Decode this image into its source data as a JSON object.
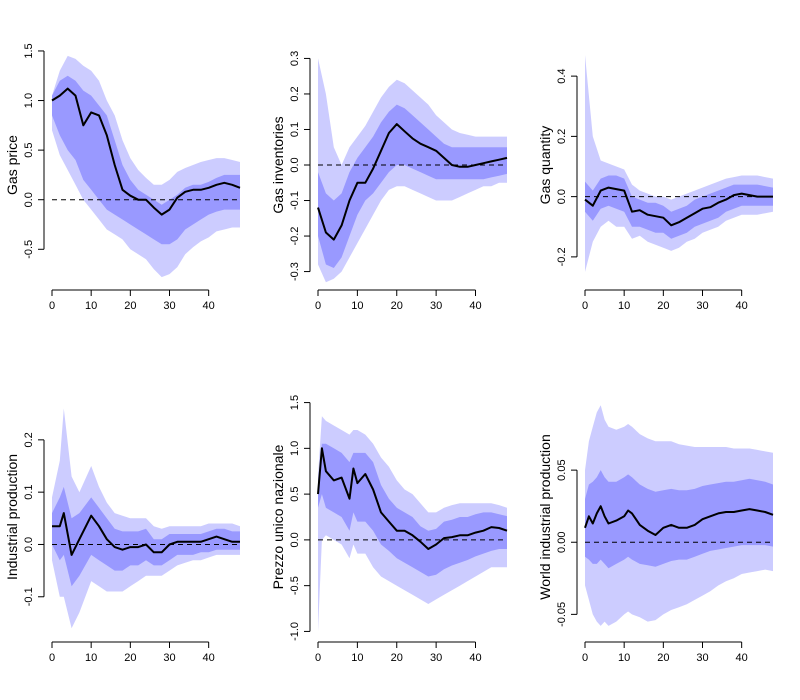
{
  "figure": {
    "description_key": "impulse-response-grid"
  },
  "chart_data": [
    {
      "type": "line",
      "ylabel": "Gas price",
      "xlim": [
        0,
        48
      ],
      "ylim": [
        -0.85,
        1.55
      ],
      "xticks": [
        0,
        10,
        20,
        30,
        40
      ],
      "yticks": [
        -0.5,
        0.0,
        0.5,
        1.0,
        1.5
      ],
      "ytick_labels": [
        "-0.5",
        "0.0",
        "0.5",
        "1.0",
        "1.5"
      ],
      "zero_line": true,
      "colors": {
        "outer_band": "#ccccff",
        "inner_band": "#9999ff",
        "median": "#000000"
      },
      "series": {
        "x": [
          0,
          2,
          4,
          6,
          8,
          10,
          12,
          14,
          16,
          18,
          20,
          22,
          24,
          26,
          28,
          30,
          32,
          34,
          36,
          38,
          40,
          42,
          44,
          46,
          48
        ],
        "median": [
          1.0,
          1.05,
          1.12,
          1.05,
          0.75,
          0.88,
          0.85,
          0.65,
          0.35,
          0.1,
          0.04,
          0.0,
          0.0,
          -0.08,
          -0.15,
          -0.1,
          0.02,
          0.08,
          0.1,
          0.1,
          0.12,
          0.15,
          0.17,
          0.15,
          0.12
        ],
        "lower68": [
          0.85,
          0.65,
          0.5,
          0.4,
          0.2,
          0.1,
          0.0,
          -0.1,
          -0.15,
          -0.2,
          -0.25,
          -0.3,
          -0.35,
          -0.4,
          -0.45,
          -0.45,
          -0.4,
          -0.3,
          -0.25,
          -0.2,
          -0.15,
          -0.12,
          -0.1,
          -0.1,
          -0.1
        ],
        "upper68": [
          1.05,
          1.2,
          1.25,
          1.2,
          1.1,
          1.05,
          0.95,
          0.85,
          0.6,
          0.35,
          0.2,
          0.1,
          0.05,
          0.0,
          -0.05,
          0.0,
          0.05,
          0.12,
          0.15,
          0.15,
          0.18,
          0.22,
          0.25,
          0.25,
          0.25
        ],
        "lower90": [
          0.7,
          0.45,
          0.3,
          0.15,
          0.0,
          -0.1,
          -0.2,
          -0.3,
          -0.35,
          -0.4,
          -0.5,
          -0.55,
          -0.6,
          -0.7,
          -0.78,
          -0.75,
          -0.68,
          -0.55,
          -0.48,
          -0.42,
          -0.38,
          -0.32,
          -0.3,
          -0.28,
          -0.28
        ],
        "upper90": [
          1.05,
          1.3,
          1.45,
          1.42,
          1.35,
          1.3,
          1.2,
          1.0,
          0.85,
          0.6,
          0.42,
          0.3,
          0.22,
          0.15,
          0.15,
          0.2,
          0.28,
          0.32,
          0.35,
          0.38,
          0.4,
          0.42,
          0.42,
          0.4,
          0.38
        ]
      }
    },
    {
      "type": "line",
      "ylabel": "Gas inventories",
      "xlim": [
        0,
        48
      ],
      "ylim": [
        -0.335,
        0.335
      ],
      "xticks": [
        0,
        10,
        20,
        30,
        40
      ],
      "yticks": [
        -0.3,
        -0.2,
        -0.1,
        0.0,
        0.1,
        0.2,
        0.3
      ],
      "ytick_labels": [
        "-0.3",
        "-0.2",
        "-0.1",
        "0.0",
        "0.1",
        "0.2",
        "0.3"
      ],
      "zero_line": true,
      "colors": {
        "outer_band": "#ccccff",
        "inner_band": "#9999ff",
        "median": "#000000"
      },
      "series": {
        "x": [
          0,
          2,
          4,
          6,
          8,
          10,
          12,
          14,
          16,
          18,
          20,
          22,
          24,
          26,
          28,
          30,
          32,
          34,
          36,
          38,
          40,
          42,
          44,
          46,
          48
        ],
        "median": [
          -0.12,
          -0.19,
          -0.21,
          -0.17,
          -0.1,
          -0.05,
          -0.05,
          -0.01,
          0.04,
          0.09,
          0.115,
          0.095,
          0.075,
          0.06,
          0.05,
          0.04,
          0.02,
          0.0,
          -0.005,
          -0.005,
          0.0,
          0.005,
          0.01,
          0.015,
          0.02
        ],
        "lower68": [
          -0.2,
          -0.28,
          -0.29,
          -0.26,
          -0.2,
          -0.14,
          -0.1,
          -0.08,
          -0.05,
          -0.02,
          0.0,
          0.0,
          -0.01,
          -0.02,
          -0.03,
          -0.04,
          -0.04,
          -0.04,
          -0.04,
          -0.04,
          -0.04,
          -0.04,
          -0.035,
          -0.03,
          -0.025
        ],
        "upper68": [
          -0.02,
          -0.08,
          -0.1,
          -0.08,
          -0.02,
          0.02,
          0.05,
          0.08,
          0.12,
          0.15,
          0.17,
          0.16,
          0.14,
          0.12,
          0.1,
          0.08,
          0.06,
          0.05,
          0.05,
          0.05,
          0.05,
          0.05,
          0.05,
          0.05,
          0.05
        ],
        "lower90": [
          -0.28,
          -0.33,
          -0.32,
          -0.3,
          -0.26,
          -0.22,
          -0.18,
          -0.14,
          -0.1,
          -0.07,
          -0.06,
          -0.06,
          -0.07,
          -0.08,
          -0.09,
          -0.1,
          -0.1,
          -0.1,
          -0.09,
          -0.08,
          -0.07,
          -0.06,
          -0.06,
          -0.05,
          -0.05
        ],
        "upper90": [
          0.3,
          0.2,
          0.05,
          0.0,
          0.05,
          0.08,
          0.11,
          0.15,
          0.19,
          0.22,
          0.24,
          0.23,
          0.21,
          0.19,
          0.17,
          0.14,
          0.12,
          0.1,
          0.09,
          0.085,
          0.08,
          0.08,
          0.08,
          0.08,
          0.08
        ]
      }
    },
    {
      "type": "line",
      "ylabel": "Gas quantity",
      "xlim": [
        0,
        48
      ],
      "ylim": [
        -0.29,
        0.5
      ],
      "xticks": [
        0,
        10,
        20,
        30,
        40
      ],
      "yticks": [
        -0.2,
        0.0,
        0.2,
        0.4
      ],
      "ytick_labels": [
        "-0.2",
        "0.0",
        "0.2",
        "0.4"
      ],
      "zero_line": true,
      "colors": {
        "outer_band": "#ccccff",
        "inner_band": "#9999ff",
        "median": "#000000"
      },
      "series": {
        "x": [
          0,
          2,
          4,
          6,
          8,
          10,
          12,
          14,
          16,
          18,
          20,
          22,
          24,
          26,
          28,
          30,
          32,
          34,
          36,
          38,
          40,
          42,
          44,
          46,
          48
        ],
        "median": [
          -0.01,
          -0.03,
          0.02,
          0.03,
          0.025,
          0.02,
          -0.05,
          -0.045,
          -0.06,
          -0.065,
          -0.07,
          -0.095,
          -0.085,
          -0.07,
          -0.055,
          -0.04,
          -0.035,
          -0.02,
          -0.01,
          0.005,
          0.01,
          0.005,
          0.0,
          0.0,
          0.0
        ],
        "lower68": [
          -0.05,
          -0.08,
          -0.04,
          -0.03,
          -0.04,
          -0.05,
          -0.1,
          -0.1,
          -0.11,
          -0.12,
          -0.12,
          -0.14,
          -0.13,
          -0.12,
          -0.1,
          -0.09,
          -0.08,
          -0.07,
          -0.05,
          -0.04,
          -0.03,
          -0.03,
          -0.03,
          -0.03,
          -0.03
        ],
        "upper68": [
          0.05,
          0.02,
          0.06,
          0.07,
          0.07,
          0.06,
          0.0,
          -0.01,
          -0.02,
          -0.02,
          -0.03,
          -0.05,
          -0.04,
          -0.03,
          -0.01,
          0.0,
          0.01,
          0.02,
          0.03,
          0.04,
          0.04,
          0.04,
          0.04,
          0.035,
          0.03
        ],
        "lower90": [
          -0.25,
          -0.15,
          -0.1,
          -0.08,
          -0.1,
          -0.1,
          -0.14,
          -0.13,
          -0.15,
          -0.16,
          -0.17,
          -0.18,
          -0.17,
          -0.15,
          -0.14,
          -0.12,
          -0.11,
          -0.1,
          -0.08,
          -0.07,
          -0.06,
          -0.06,
          -0.06,
          -0.055,
          -0.05
        ],
        "upper90": [
          0.47,
          0.2,
          0.12,
          0.11,
          0.1,
          0.09,
          0.04,
          0.02,
          0.01,
          0.0,
          0.0,
          -0.01,
          0.0,
          0.01,
          0.02,
          0.03,
          0.04,
          0.05,
          0.06,
          0.065,
          0.07,
          0.07,
          0.07,
          0.065,
          0.06
        ]
      }
    },
    {
      "type": "line",
      "ylabel": "Industrial production",
      "xlim": [
        0,
        48
      ],
      "ylim": [
        -0.175,
        0.28
      ],
      "xticks": [
        0,
        10,
        20,
        30,
        40
      ],
      "yticks": [
        -0.1,
        0.0,
        0.1,
        0.2
      ],
      "ytick_labels": [
        "-0.1",
        "0.0",
        "0.1",
        "0.2"
      ],
      "zero_line": true,
      "colors": {
        "outer_band": "#ccccff",
        "inner_band": "#9999ff",
        "median": "#000000"
      },
      "series": {
        "x": [
          0,
          2,
          3,
          5,
          7,
          10,
          12,
          14,
          16,
          18,
          20,
          22,
          24,
          26,
          28,
          30,
          32,
          34,
          36,
          38,
          40,
          42,
          44,
          46,
          48
        ],
        "median": [
          0.035,
          0.035,
          0.06,
          -0.02,
          0.01,
          0.055,
          0.035,
          0.01,
          -0.005,
          -0.01,
          -0.005,
          -0.005,
          0.0,
          -0.015,
          -0.015,
          0.0,
          0.005,
          0.005,
          0.005,
          0.005,
          0.01,
          0.015,
          0.01,
          0.005,
          0.005
        ],
        "lower68": [
          0.0,
          -0.03,
          -0.02,
          -0.08,
          -0.06,
          -0.02,
          -0.03,
          -0.04,
          -0.05,
          -0.05,
          -0.04,
          -0.04,
          -0.03,
          -0.04,
          -0.04,
          -0.03,
          -0.02,
          -0.02,
          -0.02,
          -0.015,
          -0.015,
          -0.01,
          -0.01,
          -0.01,
          -0.01
        ],
        "upper68": [
          0.06,
          0.09,
          0.11,
          0.05,
          0.06,
          0.09,
          0.07,
          0.05,
          0.03,
          0.025,
          0.025,
          0.025,
          0.03,
          0.01,
          0.01,
          0.02,
          0.02,
          0.02,
          0.02,
          0.02,
          0.025,
          0.03,
          0.03,
          0.025,
          0.025
        ],
        "lower90": [
          -0.03,
          -0.1,
          -0.1,
          -0.16,
          -0.13,
          -0.07,
          -0.08,
          -0.09,
          -0.09,
          -0.09,
          -0.08,
          -0.07,
          -0.06,
          -0.06,
          -0.06,
          -0.05,
          -0.04,
          -0.035,
          -0.03,
          -0.03,
          -0.025,
          -0.02,
          -0.02,
          -0.02,
          -0.02
        ],
        "upper90": [
          0.09,
          0.16,
          0.26,
          0.13,
          0.1,
          0.15,
          0.11,
          0.08,
          0.06,
          0.055,
          0.05,
          0.05,
          0.05,
          0.035,
          0.03,
          0.035,
          0.035,
          0.035,
          0.035,
          0.035,
          0.04,
          0.04,
          0.04,
          0.04,
          0.035
        ]
      }
    },
    {
      "type": "line",
      "ylabel": "Prezzo unico nazionale",
      "xlim": [
        0,
        48
      ],
      "ylim": [
        -1.05,
        1.55
      ],
      "xticks": [
        0,
        10,
        20,
        30,
        40
      ],
      "yticks": [
        -1.0,
        -0.5,
        0.0,
        0.5,
        1.0,
        1.5
      ],
      "ytick_labels": [
        "-1.0",
        "-0.5",
        "0.0",
        "0.5",
        "1.0",
        "1.5"
      ],
      "zero_line": true,
      "colors": {
        "outer_band": "#ccccff",
        "inner_band": "#9999ff",
        "median": "#000000"
      },
      "series": {
        "x": [
          0,
          1,
          2,
          4,
          6,
          8,
          9,
          10,
          12,
          14,
          16,
          18,
          20,
          22,
          24,
          26,
          28,
          30,
          32,
          34,
          36,
          38,
          40,
          42,
          44,
          46,
          48
        ],
        "median": [
          0.5,
          1.0,
          0.75,
          0.65,
          0.68,
          0.45,
          0.78,
          0.62,
          0.72,
          0.55,
          0.3,
          0.2,
          0.1,
          0.1,
          0.05,
          -0.02,
          -0.1,
          -0.05,
          0.02,
          0.03,
          0.05,
          0.05,
          0.08,
          0.1,
          0.14,
          0.13,
          0.1
        ],
        "lower68": [
          0.35,
          0.5,
          0.35,
          0.3,
          0.25,
          0.1,
          0.3,
          0.2,
          0.2,
          0.1,
          -0.05,
          -0.12,
          -0.2,
          -0.25,
          -0.3,
          -0.35,
          -0.4,
          -0.38,
          -0.32,
          -0.28,
          -0.25,
          -0.22,
          -0.18,
          -0.15,
          -0.12,
          -0.1,
          -0.1
        ],
        "upper68": [
          0.65,
          1.05,
          1.05,
          1.0,
          0.95,
          0.85,
          0.95,
          0.95,
          0.95,
          0.85,
          0.6,
          0.45,
          0.35,
          0.3,
          0.25,
          0.15,
          0.1,
          0.12,
          0.2,
          0.22,
          0.25,
          0.25,
          0.28,
          0.3,
          0.3,
          0.28,
          0.26
        ],
        "lower90": [
          -1.0,
          0.0,
          0.05,
          0.0,
          -0.05,
          -0.2,
          -0.05,
          -0.15,
          -0.15,
          -0.3,
          -0.4,
          -0.45,
          -0.5,
          -0.55,
          -0.6,
          -0.65,
          -0.7,
          -0.65,
          -0.6,
          -0.55,
          -0.5,
          -0.45,
          -0.4,
          -0.35,
          -0.3,
          -0.3,
          -0.3
        ],
        "upper90": [
          0.7,
          1.35,
          1.3,
          1.25,
          1.2,
          1.15,
          1.2,
          1.2,
          1.15,
          1.05,
          0.9,
          0.8,
          0.65,
          0.55,
          0.5,
          0.4,
          0.3,
          0.3,
          0.35,
          0.38,
          0.4,
          0.4,
          0.4,
          0.4,
          0.4,
          0.38,
          0.35
        ]
      }
    },
    {
      "type": "line",
      "ylabel": "World industrial production",
      "xlim": [
        0,
        48
      ],
      "ylim": [
        -0.065,
        0.1
      ],
      "xticks": [
        0,
        10,
        20,
        30,
        40
      ],
      "yticks": [
        -0.05,
        0.0,
        0.05
      ],
      "ytick_labels": [
        "-0.05",
        "0.00",
        "0.05"
      ],
      "zero_line": true,
      "colors": {
        "outer_band": "#ccccff",
        "inner_band": "#9999ff",
        "median": "#000000"
      },
      "series": {
        "x": [
          0,
          1,
          2,
          3,
          4,
          5,
          6,
          8,
          10,
          11,
          12,
          14,
          16,
          18,
          20,
          22,
          24,
          26,
          28,
          30,
          32,
          34,
          36,
          38,
          40,
          42,
          44,
          46,
          48
        ],
        "median": [
          0.01,
          0.018,
          0.013,
          0.02,
          0.025,
          0.018,
          0.013,
          0.015,
          0.018,
          0.022,
          0.02,
          0.012,
          0.008,
          0.005,
          0.01,
          0.012,
          0.01,
          0.01,
          0.012,
          0.016,
          0.018,
          0.02,
          0.021,
          0.021,
          0.022,
          0.023,
          0.022,
          0.021,
          0.019
        ],
        "lower68": [
          -0.01,
          -0.012,
          -0.015,
          -0.015,
          -0.012,
          -0.015,
          -0.018,
          -0.015,
          -0.012,
          -0.01,
          -0.012,
          -0.015,
          -0.016,
          -0.017,
          -0.015,
          -0.013,
          -0.012,
          -0.012,
          -0.01,
          -0.008,
          -0.006,
          -0.005,
          -0.004,
          -0.003,
          -0.002,
          -0.002,
          -0.002,
          -0.002,
          -0.003
        ],
        "upper68": [
          0.03,
          0.04,
          0.042,
          0.045,
          0.05,
          0.045,
          0.042,
          0.042,
          0.045,
          0.047,
          0.045,
          0.04,
          0.037,
          0.035,
          0.036,
          0.037,
          0.036,
          0.036,
          0.037,
          0.039,
          0.04,
          0.041,
          0.042,
          0.042,
          0.043,
          0.044,
          0.043,
          0.042,
          0.04
        ],
        "lower90": [
          -0.03,
          -0.04,
          -0.05,
          -0.055,
          -0.058,
          -0.055,
          -0.058,
          -0.055,
          -0.05,
          -0.048,
          -0.05,
          -0.052,
          -0.055,
          -0.054,
          -0.05,
          -0.047,
          -0.045,
          -0.043,
          -0.04,
          -0.037,
          -0.034,
          -0.03,
          -0.027,
          -0.025,
          -0.022,
          -0.021,
          -0.02,
          -0.019,
          -0.02
        ],
        "upper90": [
          0.05,
          0.07,
          0.08,
          0.09,
          0.095,
          0.085,
          0.08,
          0.078,
          0.08,
          0.082,
          0.08,
          0.075,
          0.072,
          0.07,
          0.07,
          0.07,
          0.068,
          0.067,
          0.066,
          0.066,
          0.066,
          0.066,
          0.066,
          0.065,
          0.065,
          0.065,
          0.064,
          0.063,
          0.062
        ]
      }
    }
  ]
}
